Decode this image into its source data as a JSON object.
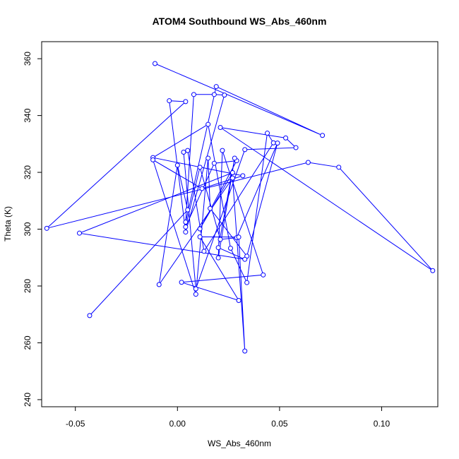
{
  "chart_data": {
    "type": "scatter",
    "title": "ATOM4 Southbound WS_Abs_460nm",
    "xlabel": "WS_Abs_460nm",
    "ylabel": "Theta (K)",
    "xlim": [
      -0.0665,
      0.1275
    ],
    "ylim": [
      237.5,
      366.0
    ],
    "xticks": [
      -0.05,
      0.0,
      0.05,
      0.1
    ],
    "xtick_labels": [
      "-0.05",
      "0.00",
      "0.05",
      "0.10"
    ],
    "yticks": [
      240,
      260,
      280,
      300,
      320,
      340,
      360
    ],
    "yticks_labels": [
      "240",
      "260",
      "280",
      "300",
      "320",
      "340",
      "360"
    ],
    "connected": true,
    "color": "#0000ff",
    "points": [
      {
        "x": -0.011,
        "y": 358.3
      },
      {
        "x": 0.071,
        "y": 333.0
      },
      {
        "x": 0.019,
        "y": 350.2
      },
      {
        "x": 0.004,
        "y": 302.5
      },
      {
        "x": 0.008,
        "y": 347.4
      },
      {
        "x": 0.018,
        "y": 347.4
      },
      {
        "x": 0.023,
        "y": 347.2
      },
      {
        "x": 0.004,
        "y": 299.0
      },
      {
        "x": -0.004,
        "y": 345.2
      },
      {
        "x": 0.004,
        "y": 344.9
      },
      {
        "x": -0.064,
        "y": 300.3
      },
      {
        "x": 0.064,
        "y": 323.5
      },
      {
        "x": 0.079,
        "y": 321.8
      },
      {
        "x": 0.125,
        "y": 285.4
      },
      {
        "x": 0.021,
        "y": 335.8
      },
      {
        "x": 0.053,
        "y": 332.1
      },
      {
        "x": 0.058,
        "y": 328.7
      },
      {
        "x": 0.033,
        "y": 328.0
      },
      {
        "x": 0.009,
        "y": 279.0
      },
      {
        "x": 0.003,
        "y": 327.1
      },
      {
        "x": 0.005,
        "y": 327.7
      },
      {
        "x": 0.013,
        "y": 292.2
      },
      {
        "x": 0.047,
        "y": 330.4
      },
      {
        "x": 0.044,
        "y": 333.8
      },
      {
        "x": 0.034,
        "y": 281.2
      },
      {
        "x": 0.026,
        "y": 293.3
      },
      {
        "x": 0.015,
        "y": 336.9
      },
      {
        "x": -0.012,
        "y": 325.2
      },
      {
        "x": 0.032,
        "y": 318.8
      },
      {
        "x": 0.012,
        "y": 314.3
      },
      {
        "x": -0.012,
        "y": 324.4
      },
      {
        "x": 0.009,
        "y": 277.1
      },
      {
        "x": 0.015,
        "y": 325.0
      },
      {
        "x": 0.016,
        "y": 307.3
      },
      {
        "x": 0.034,
        "y": 290.5
      },
      {
        "x": 0.049,
        "y": 330.3
      },
      {
        "x": 0.029,
        "y": 297.0
      },
      {
        "x": 0.021,
        "y": 296.4
      },
      {
        "x": 0.011,
        "y": 321.8
      },
      {
        "x": 0.004,
        "y": 300.8
      },
      {
        "x": 0.018,
        "y": 323.2
      },
      {
        "x": 0.029,
        "y": 324.1
      },
      {
        "x": 0.011,
        "y": 300.1
      },
      {
        "x": 0.027,
        "y": 319.9
      },
      {
        "x": -0.048,
        "y": 298.6
      },
      {
        "x": 0.033,
        "y": 289.4
      },
      {
        "x": 0.02,
        "y": 293.5
      },
      {
        "x": 0.028,
        "y": 325.0
      },
      {
        "x": 0.02,
        "y": 289.9
      },
      {
        "x": 0.022,
        "y": 327.7
      },
      {
        "x": 0.042,
        "y": 283.9
      },
      {
        "x": 0.002,
        "y": 281.3
      },
      {
        "x": 0.03,
        "y": 274.9
      },
      {
        "x": 0.011,
        "y": 297.3
      },
      {
        "x": 0.03,
        "y": 297.2
      },
      {
        "x": 0.033,
        "y": 257.1
      },
      {
        "x": 0.027,
        "y": 318.0
      },
      {
        "x": -0.009,
        "y": 280.5
      },
      {
        "x": 0.0,
        "y": 322.5
      },
      {
        "x": 0.005,
        "y": 306.8
      },
      {
        "x": -0.043,
        "y": 269.6
      }
    ]
  }
}
